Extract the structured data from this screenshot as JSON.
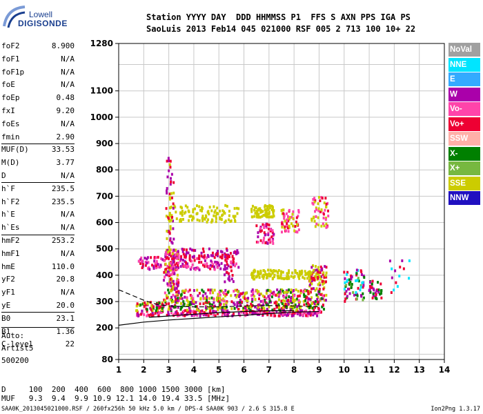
{
  "logo": {
    "line1": "Lowell",
    "line2": "DIGISONDE"
  },
  "header": {
    "line1": "Station YYYY DAY  DDD HHMMSS P1  FFS S AXN PPS IGA PS",
    "line2": "SaoLuis 2013 Feb14 045 021000 RSF 005 2 713 100 10+ 22"
  },
  "params": [
    {
      "label": "foF2",
      "value": "8.900"
    },
    {
      "label": "foF1",
      "value": "N/A"
    },
    {
      "label": "foF1p",
      "value": "N/A"
    },
    {
      "label": "foE",
      "value": "N/A"
    },
    {
      "label": "foEp",
      "value": "0.48"
    },
    {
      "label": "fxI",
      "value": "9.20"
    },
    {
      "label": "foEs",
      "value": "N/A"
    },
    {
      "label": "fmin",
      "value": "2.90"
    },
    {
      "label": "MUF(D)",
      "value": "33.53"
    },
    {
      "label": "M(D)",
      "value": "3.77"
    },
    {
      "label": "D",
      "value": "N/A"
    },
    {
      "label": "h`F",
      "value": "235.5"
    },
    {
      "label": "h`F2",
      "value": "235.5"
    },
    {
      "label": "h`E",
      "value": "N/A"
    },
    {
      "label": "h`Es",
      "value": "N/A"
    },
    {
      "label": "hmF2",
      "value": "253.2"
    },
    {
      "label": "hmF1",
      "value": "N/A"
    },
    {
      "label": "hmE",
      "value": "110.0"
    },
    {
      "label": "yF2",
      "value": "20.8"
    },
    {
      "label": "yF1",
      "value": "N/A"
    },
    {
      "label": "yE",
      "value": "20.0"
    },
    {
      "label": "B0",
      "value": "23.1"
    },
    {
      "label": "B1",
      "value": "1.36"
    },
    {
      "label": "C-level",
      "value": "22"
    }
  ],
  "auto": {
    "line1": "Auto:",
    "line2": "Artist5",
    "line3": "500200"
  },
  "legend": [
    {
      "label": "NoVal",
      "color": "#a0a0a0"
    },
    {
      "label": "NNE",
      "color": "#00e5ff"
    },
    {
      "label": "E",
      "color": "#33aaff"
    },
    {
      "label": "W",
      "color": "#aa00aa"
    },
    {
      "label": "Vo-",
      "color": "#ff44aa"
    },
    {
      "label": "Vo+",
      "color": "#ee0033"
    },
    {
      "label": "SSW",
      "color": "#ffb0a8"
    },
    {
      "label": "X-",
      "color": "#008000"
    },
    {
      "label": "X+",
      "color": "#77b840"
    },
    {
      "label": "SSE",
      "color": "#cccc00"
    },
    {
      "label": "NNW",
      "color": "#2010c0"
    }
  ],
  "bottom_table": {
    "line1": "D     100  200  400  600  800 1000 1500 3000 [km]",
    "line2": "MUF   9.3  9.4  9.9 10.9 12.1 14.0 19.4 33.5 [MHz]"
  },
  "footer": {
    "left": "SAA0K_2013045021000.RSF / 260fx256h 50 kHz 5.0 km / DPS-4 SAA0K 903 / 2.6 S 315.8 E",
    "right": "Ion2Png 1.3.17"
  },
  "chart_data": {
    "type": "scatter",
    "xlim": [
      1,
      14
    ],
    "ylim": [
      80,
      1280
    ],
    "x_ticks": [
      "1",
      "2",
      "3",
      "4",
      "5",
      "6",
      "7",
      "8",
      "9",
      "10",
      "11",
      "12",
      "13",
      "14"
    ],
    "y_ticks": [
      "1280",
      "1100",
      "1000",
      "900",
      "800",
      "700",
      "600",
      "500",
      "400",
      "300",
      "200",
      "80"
    ],
    "y_tick_values": [
      1280,
      1100,
      1000,
      900,
      800,
      700,
      600,
      500,
      400,
      300,
      200,
      80
    ],
    "grid": true,
    "clusters": [
      {
        "f": [
          1.7,
          9.1
        ],
        "h": [
          245,
          265
        ],
        "colors": [
          "#ee0033",
          "#aa00aa",
          "#ff44aa"
        ],
        "n": 260
      },
      {
        "f": [
          1.7,
          9.2
        ],
        "h": [
          265,
          300
        ],
        "colors": [
          "#cccc00",
          "#ee0033",
          "#aa00aa",
          "#008000"
        ],
        "n": 300
      },
      {
        "f": [
          2.8,
          9.3
        ],
        "h": [
          300,
          345
        ],
        "colors": [
          "#cccc00",
          "#cccc00",
          "#ee0033",
          "#aa00aa",
          "#008000",
          "#ff44aa"
        ],
        "n": 280
      },
      {
        "f": [
          2.8,
          3.4
        ],
        "h": [
          345,
          500
        ],
        "colors": [
          "#cccc00",
          "#ee0033",
          "#aa00aa",
          "#ff44aa"
        ],
        "n": 120
      },
      {
        "f": [
          1.8,
          5.8
        ],
        "h": [
          420,
          470
        ],
        "colors": [
          "#aa00aa",
          "#ee0033",
          "#ff44aa"
        ],
        "n": 160
      },
      {
        "f": [
          3.3,
          5.8
        ],
        "h": [
          465,
          500
        ],
        "colors": [
          "#ee0033",
          "#aa00aa"
        ],
        "n": 60
      },
      {
        "f": [
          2.9,
          5.8
        ],
        "h": [
          600,
          665
        ],
        "colors": [
          "#cccc00"
        ],
        "n": 110
      },
      {
        "f": [
          6.3,
          7.2
        ],
        "h": [
          620,
          665
        ],
        "colors": [
          "#cccc00"
        ],
        "n": 80
      },
      {
        "f": [
          6.3,
          9.0
        ],
        "h": [
          385,
          420
        ],
        "colors": [
          "#cccc00"
        ],
        "n": 130
      },
      {
        "f": [
          6.5,
          7.2
        ],
        "h": [
          520,
          600
        ],
        "colors": [
          "#ee0033",
          "#aa00aa",
          "#ff44aa"
        ],
        "n": 50
      },
      {
        "f": [
          7.5,
          8.2
        ],
        "h": [
          560,
          650
        ],
        "colors": [
          "#ee0033",
          "#cccc00",
          "#ff44aa"
        ],
        "n": 60
      },
      {
        "f": [
          8.7,
          9.4
        ],
        "h": [
          580,
          700
        ],
        "colors": [
          "#ee0033",
          "#cccc00",
          "#ff44aa"
        ],
        "n": 50
      },
      {
        "f": [
          8.6,
          9.3
        ],
        "h": [
          345,
          440
        ],
        "colors": [
          "#cccc00",
          "#aa00aa",
          "#ee0033"
        ],
        "n": 70
      },
      {
        "f": [
          10.0,
          10.8
        ],
        "h": [
          300,
          420
        ],
        "colors": [
          "#aa00aa",
          "#00e5ff",
          "#77b840",
          "#ee0033",
          "#008000"
        ],
        "n": 70
      },
      {
        "f": [
          11.0,
          11.5
        ],
        "h": [
          310,
          380
        ],
        "colors": [
          "#ee0033",
          "#aa00aa",
          "#008000"
        ],
        "n": 35
      },
      {
        "f": [
          11.8,
          13.2
        ],
        "h": [
          320,
          460
        ],
        "colors": [
          "#00e5ff",
          "#aa00aa",
          "#ee0033"
        ],
        "n": 14
      },
      {
        "f": [
          2.9,
          3.2
        ],
        "h": [
          500,
          850
        ],
        "colors": [
          "#aa00aa",
          "#ee0033",
          "#cccc00"
        ],
        "n": 50
      },
      {
        "f": [
          5.2,
          5.6
        ],
        "h": [
          350,
          480
        ],
        "colors": [
          "#aa00aa",
          "#ee0033"
        ],
        "n": 25
      }
    ],
    "dashed_trace": [
      [
        1.0,
        345
      ],
      [
        1.5,
        325
      ],
      [
        2.0,
        305
      ],
      [
        2.5,
        290
      ],
      [
        3.0,
        283
      ],
      [
        4.0,
        280
      ],
      [
        5.0,
        280
      ],
      [
        6.0,
        283
      ],
      [
        7.0,
        285
      ],
      [
        8.0,
        283
      ],
      [
        9.0,
        280
      ]
    ],
    "solid_traces": [
      [
        [
          1.0,
          210
        ],
        [
          2.0,
          222
        ],
        [
          3.0,
          230
        ],
        [
          4.0,
          236
        ],
        [
          5.0,
          242
        ],
        [
          6.0,
          248
        ],
        [
          7.0,
          254
        ],
        [
          8.0,
          260
        ],
        [
          9.0,
          262
        ]
      ],
      [
        [
          2.2,
          240
        ],
        [
          3.0,
          245
        ],
        [
          4.0,
          252
        ],
        [
          5.0,
          258
        ],
        [
          6.0,
          262
        ],
        [
          7.0,
          265
        ],
        [
          8.0,
          265
        ]
      ]
    ]
  }
}
